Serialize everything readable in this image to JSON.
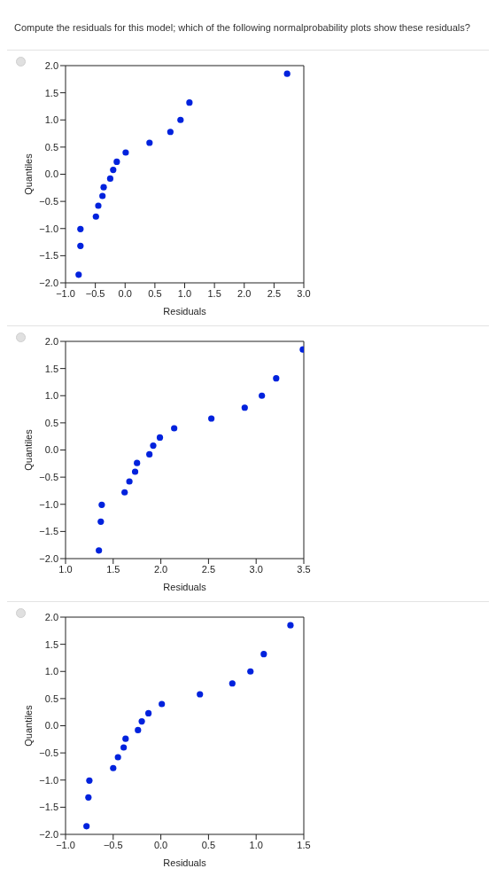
{
  "chart_data": [
    {
      "type": "scatter",
      "title": "Compute the residuals for this model; which of the following normalprobability plots show these residuals?",
      "xlabel": "Residuals",
      "ylabel": "Quantiles",
      "xlim": [
        -1,
        3
      ],
      "ylim": [
        -2,
        2
      ],
      "marker": "circle",
      "grid": false,
      "legend": false,
      "xticks": [
        {
          "value": -1,
          "label": "−1.0"
        },
        {
          "value": -0.5,
          "label": "−0.5"
        },
        {
          "value": 0,
          "label": "0.0"
        },
        {
          "value": 0.5,
          "label": "0.5"
        },
        {
          "value": 1,
          "label": "1.0"
        },
        {
          "value": 1.5,
          "label": "1.5"
        },
        {
          "value": 2,
          "label": "2.0"
        },
        {
          "value": 2.5,
          "label": "2.5"
        },
        {
          "value": 3,
          "label": "3.0"
        }
      ],
      "yticks": [
        {
          "value": -2,
          "label": "−2.0"
        },
        {
          "value": -1.5,
          "label": "−1.5"
        },
        {
          "value": -1,
          "label": "−1.0"
        },
        {
          "value": -0.5,
          "label": "−0.5"
        },
        {
          "value": 0,
          "label": "0.0"
        },
        {
          "value": 0.5,
          "label": "0.5"
        },
        {
          "value": 1,
          "label": "1.0"
        },
        {
          "value": 1.5,
          "label": "1.5"
        },
        {
          "value": 2,
          "label": "2.0"
        }
      ],
      "series": [
        {
          "color": "#0022dd",
          "x": [
            -0.78,
            -0.75,
            -0.75,
            -0.49,
            -0.45,
            -0.38,
            -0.36,
            -0.25,
            -0.2,
            -0.14,
            0.01,
            0.41,
            0.76,
            0.93,
            1.08,
            2.72
          ],
          "values": [
            -1.85,
            -1.32,
            -1.01,
            -0.78,
            -0.58,
            -0.4,
            -0.24,
            -0.08,
            0.08,
            0.23,
            0.4,
            0.58,
            0.78,
            1.0,
            1.32,
            1.85
          ]
        }
      ]
    },
    {
      "type": "scatter",
      "xlabel": "Residuals",
      "ylabel": "Quantiles",
      "xlim": [
        1,
        3.5
      ],
      "ylim": [
        -2,
        2
      ],
      "marker": "circle",
      "grid": false,
      "legend": false,
      "xticks": [
        {
          "value": 1,
          "label": "1.0"
        },
        {
          "value": 1.5,
          "label": "1.5"
        },
        {
          "value": 2,
          "label": "2.0"
        },
        {
          "value": 2.5,
          "label": "2.5"
        },
        {
          "value": 3,
          "label": "3.0"
        },
        {
          "value": 3.5,
          "label": "3.5"
        }
      ],
      "yticks": [
        {
          "value": -2,
          "label": "−2.0"
        },
        {
          "value": -1.5,
          "label": "−1.5"
        },
        {
          "value": -1,
          "label": "−1.0"
        },
        {
          "value": -0.5,
          "label": "−0.5"
        },
        {
          "value": 0,
          "label": "0.0"
        },
        {
          "value": 0.5,
          "label": "0.5"
        },
        {
          "value": 1,
          "label": "1.0"
        },
        {
          "value": 1.5,
          "label": "1.5"
        },
        {
          "value": 2,
          "label": "2.0"
        }
      ],
      "series": [
        {
          "color": "#0022dd",
          "x": [
            1.35,
            1.37,
            1.38,
            1.62,
            1.67,
            1.73,
            1.75,
            1.88,
            1.92,
            1.99,
            2.14,
            2.53,
            2.88,
            3.06,
            3.21,
            3.49
          ],
          "values": [
            -1.85,
            -1.32,
            -1.01,
            -0.78,
            -0.58,
            -0.4,
            -0.24,
            -0.08,
            0.08,
            0.23,
            0.4,
            0.58,
            0.78,
            1.0,
            1.32,
            1.85
          ]
        }
      ]
    },
    {
      "type": "scatter",
      "xlabel": "Residuals",
      "ylabel": "Quantiles",
      "xlim": [
        -1,
        1.5
      ],
      "ylim": [
        -2,
        2
      ],
      "marker": "circle",
      "grid": false,
      "legend": false,
      "xticks": [
        {
          "value": -1,
          "label": "−1.0"
        },
        {
          "value": -0.5,
          "label": "−0.5"
        },
        {
          "value": 0,
          "label": "0.0"
        },
        {
          "value": 0.5,
          "label": "0.5"
        },
        {
          "value": 1,
          "label": "1.0"
        },
        {
          "value": 1.5,
          "label": "1.5"
        }
      ],
      "yticks": [
        {
          "value": -2,
          "label": "−2.0"
        },
        {
          "value": -1.5,
          "label": "−1.5"
        },
        {
          "value": -1,
          "label": "−1.0"
        },
        {
          "value": -0.5,
          "label": "−0.5"
        },
        {
          "value": 0,
          "label": "0.0"
        },
        {
          "value": 0.5,
          "label": "0.5"
        },
        {
          "value": 1,
          "label": "1.0"
        },
        {
          "value": 1.5,
          "label": "1.5"
        },
        {
          "value": 2,
          "label": "2.0"
        }
      ],
      "series": [
        {
          "color": "#0022dd",
          "x": [
            -0.78,
            -0.76,
            -0.75,
            -0.5,
            -0.45,
            -0.39,
            -0.37,
            -0.24,
            -0.2,
            -0.13,
            0.01,
            0.41,
            0.75,
            0.94,
            1.08,
            1.36
          ],
          "values": [
            -1.85,
            -1.32,
            -1.01,
            -0.78,
            -0.58,
            -0.4,
            -0.24,
            -0.08,
            0.08,
            0.23,
            0.4,
            0.58,
            0.78,
            1.0,
            1.32,
            1.85
          ]
        }
      ]
    }
  ]
}
